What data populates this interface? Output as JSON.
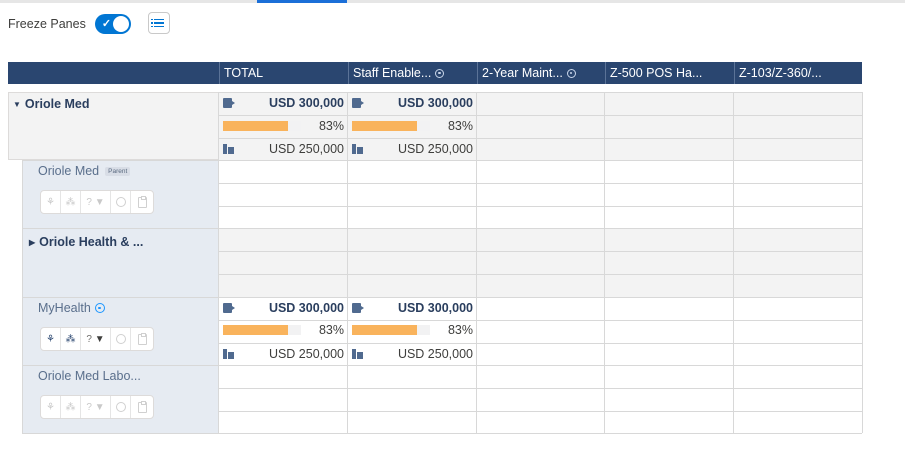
{
  "toolbar": {
    "freeze_label": "Freeze Panes",
    "freeze_on": true,
    "toggle_check": "✓",
    "list_icon": "list-icon"
  },
  "columns": [
    {
      "label": "TOTAL"
    },
    {
      "label": "Staff Enable..."
    },
    {
      "label": "2-Year Maint..."
    },
    {
      "label": "Z-500 POS Ha..."
    },
    {
      "label": "Z-103/Z-360/..."
    }
  ],
  "rows": {
    "r1": {
      "name": "Oriole Med",
      "expander": "▼",
      "total": {
        "amount": "USD 300,000",
        "pct": "83%",
        "progress": 0.83,
        "target": "USD 250,000"
      },
      "staff": {
        "amount": "USD 300,000",
        "pct": "83%",
        "progress": 0.83,
        "target": "USD 250,000"
      }
    },
    "r2": {
      "name": "Oriole Med",
      "badge": "Parent",
      "stepper_value": "?",
      "stepper_arrow": "▼"
    },
    "r3": {
      "name": "Oriole Health & ...",
      "expander": "▶"
    },
    "r4": {
      "name": "MyHealth",
      "stepper_value": "?",
      "stepper_arrow": "▼",
      "total": {
        "amount": "USD 300,000",
        "pct": "83%",
        "progress": 0.83,
        "target": "USD 250,000"
      },
      "staff": {
        "amount": "USD 300,000",
        "pct": "83%",
        "progress": 0.83,
        "target": "USD 250,000"
      }
    },
    "r5": {
      "name": "Oriole Med Labo...",
      "stepper_value": "?",
      "stepper_arrow": "▼"
    }
  },
  "colors": {
    "header_bg": "#2a4670",
    "progress_fill": "#f9b35c",
    "accent": "#0176d3"
  }
}
